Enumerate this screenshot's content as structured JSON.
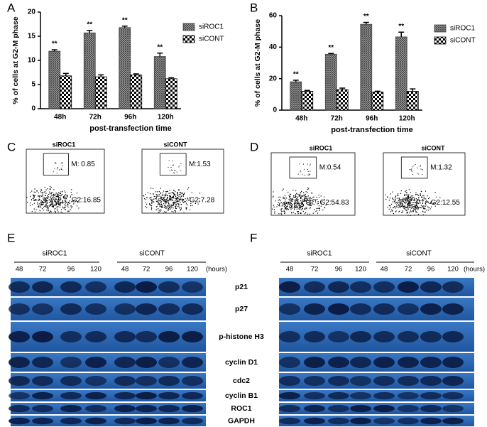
{
  "chart_data": [
    {
      "type": "bar",
      "panel": "A",
      "y_label": "% of cells at G2-M phase",
      "x_label": "post-transfection time",
      "categories": [
        "48h",
        "72h",
        "96h",
        "120h"
      ],
      "series": [
        {
          "name": "siROC1",
          "color": "#444444",
          "values": [
            11.9,
            15.7,
            16.8,
            10.8
          ],
          "errors": [
            0.3,
            0.5,
            0.3,
            0.7
          ],
          "annotations": [
            "**",
            "**",
            "**",
            "**"
          ]
        },
        {
          "name": "siCONT",
          "color": "#000000",
          "values": [
            6.8,
            6.6,
            7.0,
            6.2
          ],
          "errors": [
            0.5,
            0.4,
            0.2,
            0.2
          ]
        }
      ],
      "ylim": [
        0,
        20
      ],
      "yticks": [
        0,
        5,
        10,
        15,
        20
      ]
    },
    {
      "type": "bar",
      "panel": "B",
      "y_label": "% of cells at G2-M phase",
      "x_label": "post-transfection time",
      "categories": [
        "48h",
        "72h",
        "96h",
        "120h"
      ],
      "series": [
        {
          "name": "siROC1",
          "color": "#444444",
          "values": [
            18,
            35.5,
            54.5,
            46.5
          ],
          "errors": [
            1,
            0.5,
            1.2,
            3
          ],
          "annotations": [
            "**",
            "**",
            "**",
            "**"
          ]
        },
        {
          "name": "siCONT",
          "color": "#000000",
          "values": [
            12,
            13,
            11.5,
            12
          ],
          "errors": [
            0.5,
            1,
            0.5,
            1.5
          ]
        }
      ],
      "ylim": [
        0,
        60
      ],
      "yticks": [
        0,
        20,
        40,
        60
      ]
    }
  ],
  "flow": [
    {
      "panel": "C",
      "plots": [
        {
          "title": "siROC1",
          "m": "M: 0.85",
          "g2": "G2:16.85"
        },
        {
          "title": "siCONT",
          "m": "M:1.53",
          "g2": "G2:7.28"
        }
      ]
    },
    {
      "panel": "D",
      "plots": [
        {
          "title": "siROC1",
          "m": "M:0.54",
          "g2": "G2:54.83"
        },
        {
          "title": "siCONT",
          "m": "M:1.32",
          "g2": "G2:12.55"
        }
      ]
    }
  ],
  "blots": [
    {
      "panel": "E",
      "groups": [
        "siROC1",
        "siCONT"
      ],
      "lanes": [
        "48",
        "72",
        "96",
        "120",
        "48",
        "72",
        "96",
        "120"
      ],
      "unit": "(hours)"
    },
    {
      "panel": "F",
      "groups": [
        "siROC1",
        "siCONT"
      ],
      "lanes": [
        "48",
        "72",
        "96",
        "120",
        "48",
        "72",
        "96",
        "120"
      ],
      "unit": "(hours)"
    }
  ],
  "blot_rows": [
    "p21",
    "p27",
    "p-histone H3",
    "cyclin D1",
    "cdc2",
    "cyclin B1",
    "ROC1",
    "GAPDH"
  ]
}
